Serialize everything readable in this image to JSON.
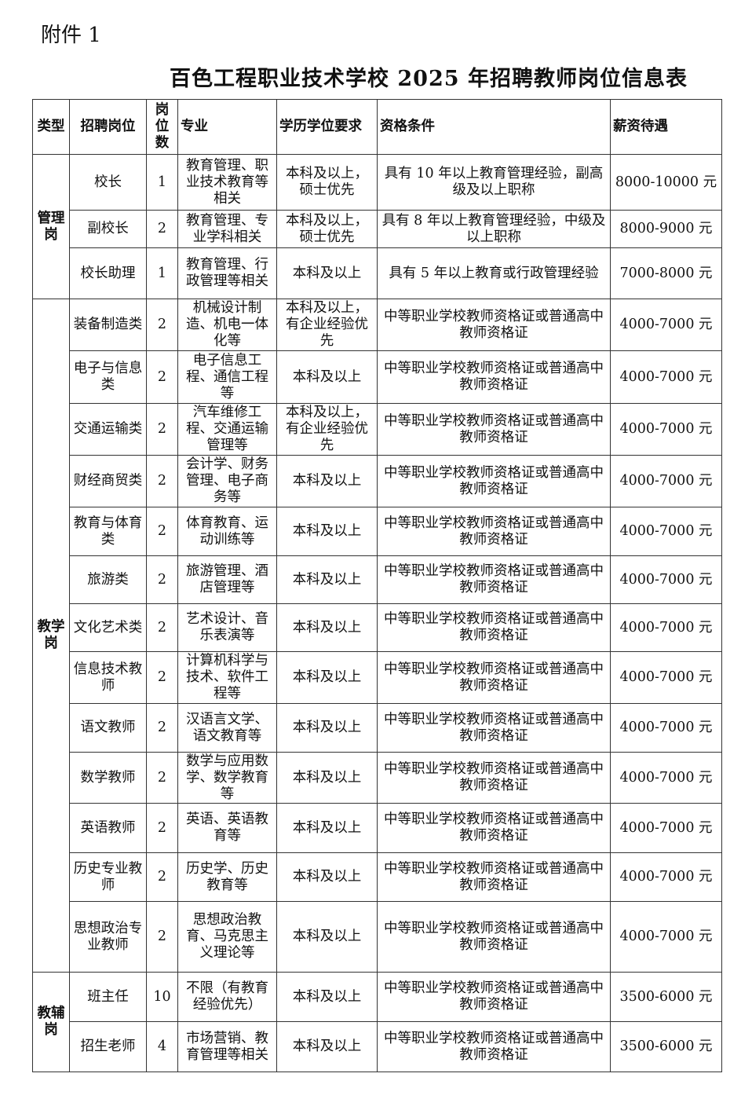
{
  "attachment_label": "附件 1",
  "title": "百色工程职业技术学校 2025 年招聘教师岗位信息表",
  "table": {
    "headers": [
      "类型",
      "招聘岗位",
      "岗位数",
      "专业",
      "学历学位要求",
      "资格条件",
      "薪资待遇"
    ],
    "groups": [
      {
        "type": "管理岗",
        "rows": [
          {
            "position": "校长",
            "count": "1",
            "major": "教育管理、职业技术教育等相关",
            "degree": "本科及以上，硕士优先",
            "qualification": "具有 10 年以上教育管理经验，副高级及以上职称",
            "salary": "8000-10000 元"
          },
          {
            "position": "副校长",
            "count": "2",
            "major": "教育管理、专业学科相关",
            "degree": "本科及以上，硕士优先",
            "qualification": "具有 8 年以上教育管理经验，中级及以上职称",
            "salary": "8000-9000 元"
          },
          {
            "position": "校长助理",
            "count": "1",
            "major": "教育管理、行政管理等相关",
            "degree": "本科及以上",
            "qualification": "具有 5 年以上教育或行政管理经验",
            "salary": "7000-8000 元"
          }
        ]
      },
      {
        "type": "教学岗",
        "rows": [
          {
            "position": "装备制造类",
            "count": "2",
            "major": "机械设计制造、机电一体化等",
            "degree": "本科及以上，有企业经验优先",
            "qualification": "中等职业学校教师资格证或普通高中教师资格证",
            "salary": "4000-7000 元"
          },
          {
            "position": "电子与信息类",
            "count": "2",
            "major": "电子信息工程、通信工程等",
            "degree": "本科及以上",
            "qualification": "中等职业学校教师资格证或普通高中教师资格证",
            "salary": "4000-7000 元"
          },
          {
            "position": "交通运输类",
            "count": "2",
            "major": "汽车维修工程、交通运输管理等",
            "degree": "本科及以上，有企业经验优先",
            "qualification": "中等职业学校教师资格证或普通高中教师资格证",
            "salary": "4000-7000 元"
          },
          {
            "position": "财经商贸类",
            "count": "2",
            "major": "会计学、财务管理、电子商务等",
            "degree": "本科及以上",
            "qualification": "中等职业学校教师资格证或普通高中教师资格证",
            "salary": "4000-7000 元"
          },
          {
            "position": "教育与体育类",
            "count": "2",
            "major": "体育教育、运动训练等",
            "degree": "本科及以上",
            "qualification": "中等职业学校教师资格证或普通高中教师资格证",
            "salary": "4000-7000 元"
          },
          {
            "position": "旅游类",
            "count": "2",
            "major": "旅游管理、酒店管理等",
            "degree": "本科及以上",
            "qualification": "中等职业学校教师资格证或普通高中教师资格证",
            "salary": "4000-7000 元"
          },
          {
            "position": "文化艺术类",
            "count": "2",
            "major": "艺术设计、音乐表演等",
            "degree": "本科及以上",
            "qualification": "中等职业学校教师资格证或普通高中教师资格证",
            "salary": "4000-7000 元"
          },
          {
            "position": "信息技术教师",
            "count": "2",
            "major": "计算机科学与技术、软件工程等",
            "degree": "本科及以上",
            "qualification": "中等职业学校教师资格证或普通高中教师资格证",
            "salary": "4000-7000 元"
          },
          {
            "position": "语文教师",
            "count": "2",
            "major": "汉语言文学、语文教育等",
            "degree": "本科及以上",
            "qualification": "中等职业学校教师资格证或普通高中教师资格证",
            "salary": "4000-7000 元"
          },
          {
            "position": "数学教师",
            "count": "2",
            "major": "数学与应用数学、数学教育等",
            "degree": "本科及以上",
            "qualification": "中等职业学校教师资格证或普通高中教师资格证",
            "salary": "4000-7000 元"
          },
          {
            "position": "英语教师",
            "count": "2",
            "major": "英语、英语教育等",
            "degree": "本科及以上",
            "qualification": "中等职业学校教师资格证或普通高中教师资格证",
            "salary": "4000-7000 元"
          },
          {
            "position": "历史专业教师",
            "count": "2",
            "major": "历史学、历史教育等",
            "degree": "本科及以上",
            "qualification": "中等职业学校教师资格证或普通高中教师资格证",
            "salary": "4000-7000 元"
          },
          {
            "position": "思想政治专业教师",
            "count": "2",
            "major": "思想政治教育、马克思主义理论等",
            "degree": "本科及以上",
            "qualification": "中等职业学校教师资格证或普通高中教师资格证",
            "salary": "4000-7000 元"
          }
        ]
      },
      {
        "type": "教辅岗",
        "rows": [
          {
            "position": "班主任",
            "count": "10",
            "major": "不限（有教育经验优先）",
            "degree": "本科及以上",
            "qualification": "中等职业学校教师资格证或普通高中教师资格证",
            "salary": "3500-6000 元"
          },
          {
            "position": "招生老师",
            "count": "4",
            "major": "市场营销、教育管理等相关",
            "degree": "本科及以上",
            "qualification": "中等职业学校教师资格证或普通高中教师资格证",
            "salary": "3500-6000 元"
          }
        ]
      }
    ]
  }
}
